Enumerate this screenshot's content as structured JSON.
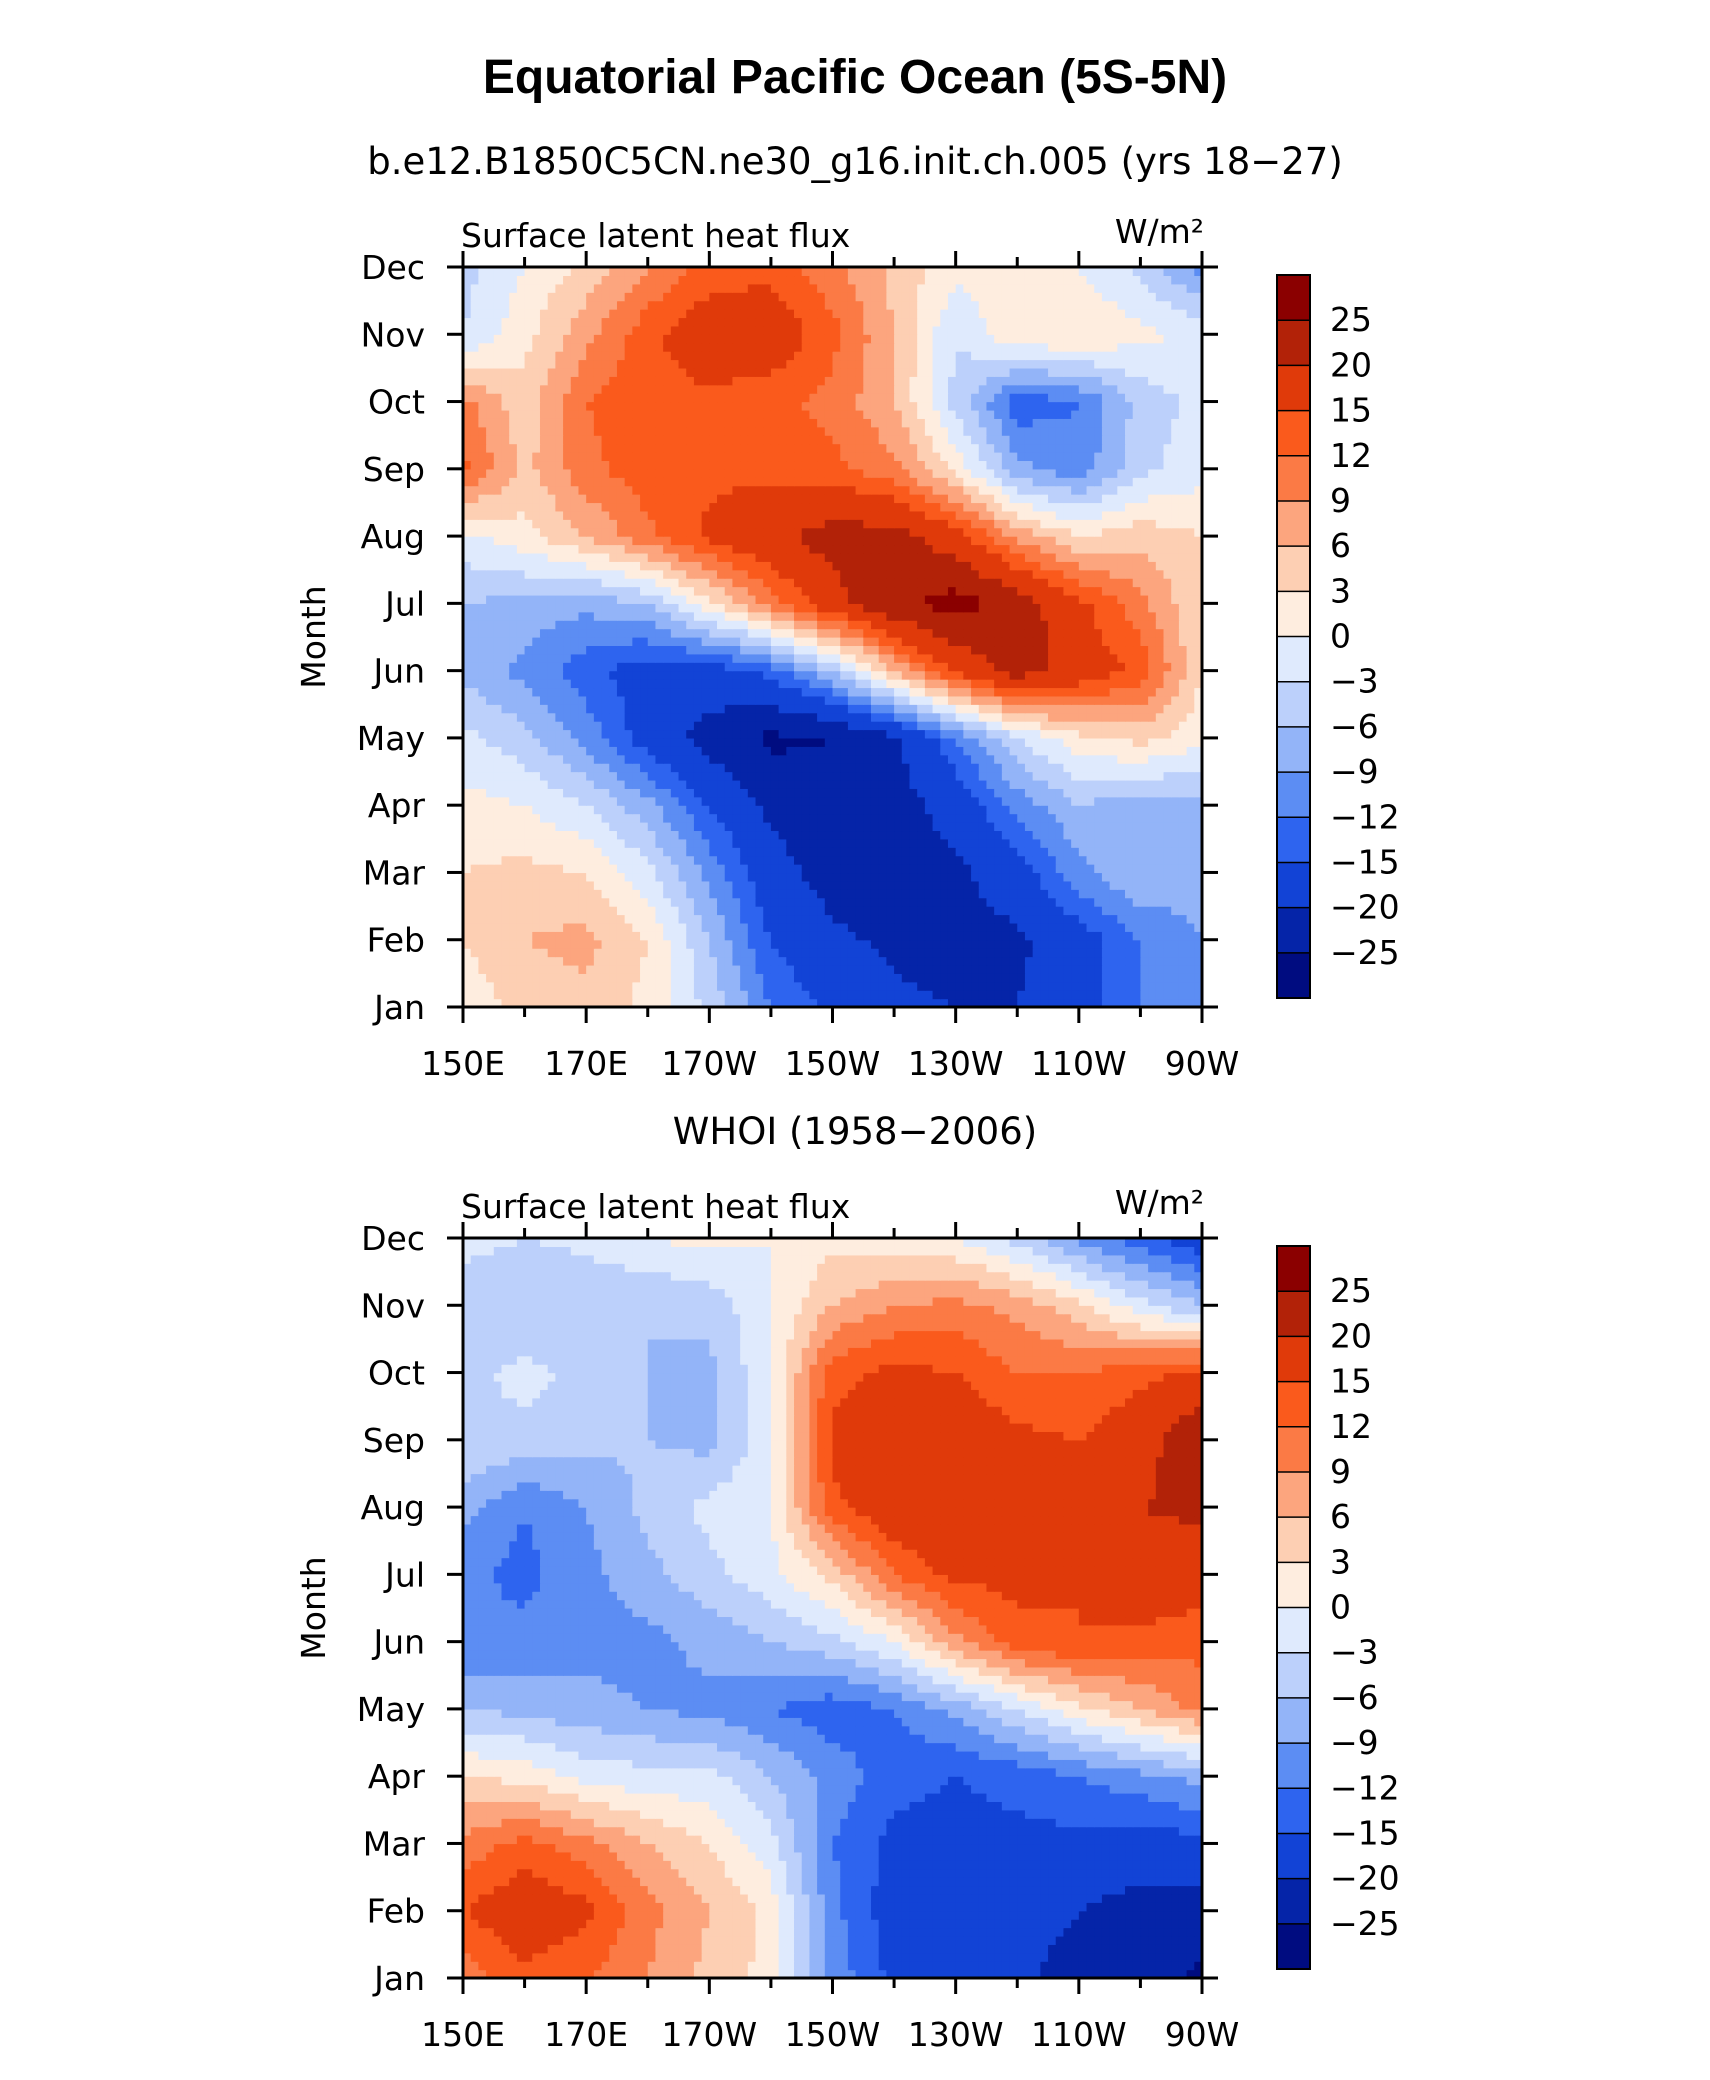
{
  "title": "Equatorial Pacific Ocean (5S-5N)",
  "colorbar_levels": [
    "25",
    "20",
    "15",
    "12",
    "9",
    "6",
    "3",
    "0",
    "−3",
    "−6",
    "−9",
    "−12",
    "−15",
    "−20",
    "−25"
  ],
  "colorbar_colors": [
    "#8b0000",
    "#b22208",
    "#e03a0a",
    "#fa5a1c",
    "#fb7a45",
    "#fca57e",
    "#fdcfb3",
    "#feeddf",
    "#dfeafd",
    "#bcd0fb",
    "#93b4f8",
    "#5c8df3",
    "#2e64ef",
    "#1243d6",
    "#0524a8",
    "#000c80"
  ],
  "chart_data": [
    {
      "type": "heatmap",
      "title": "b.e12.B1850C5CN.ne30_g16.init.ch.005 (yrs 18−27)",
      "left_label": "Surface latent heat flux",
      "units_label": "W/m²",
      "ylabel": "Month",
      "x_ticks": [
        "150E",
        "170E",
        "170W",
        "150W",
        "130W",
        "110W",
        "90W"
      ],
      "x_values": [
        150,
        170,
        190,
        210,
        230,
        250,
        270
      ],
      "xlim": [
        150,
        270
      ],
      "y_ticks": [
        "Jan",
        "Feb",
        "Mar",
        "Apr",
        "May",
        "Jun",
        "Jul",
        "Aug",
        "Sep",
        "Oct",
        "Nov",
        "Dec"
      ],
      "ylim": [
        1,
        12
      ],
      "z_grid_x": [
        150,
        160,
        170,
        180,
        190,
        200,
        210,
        220,
        230,
        240,
        250,
        260,
        270
      ],
      "z_grid_y": [
        "Jan",
        "Feb",
        "Mar",
        "Apr",
        "May",
        "Jun",
        "Jul",
        "Aug",
        "Sep",
        "Oct",
        "Nov",
        "Dec"
      ],
      "z": [
        [
          1,
          4,
          5,
          2,
          -4,
          -12,
          -16,
          -19,
          -20,
          -20,
          -17,
          -12,
          -10
        ],
        [
          3,
          6,
          7,
          3,
          -6,
          -15,
          -19,
          -21,
          -22,
          -21,
          -17,
          -12,
          -9
        ],
        [
          3,
          4,
          3,
          -2,
          -10,
          -18,
          -22,
          -23,
          -21,
          -17,
          -10,
          -6,
          -8
        ],
        [
          1,
          0,
          -3,
          -8,
          -15,
          -21,
          -24,
          -22,
          -18,
          -11,
          -6,
          -8,
          -7
        ],
        [
          -2,
          -5,
          -10,
          -17,
          -22,
          -26,
          -25,
          -21,
          -12,
          -3,
          2,
          4,
          1
        ],
        [
          -7,
          -10,
          -14,
          -17,
          -17,
          -14,
          -6,
          6,
          16,
          22,
          18,
          14,
          3
        ],
        [
          -6,
          -7,
          -8,
          -6,
          2,
          10,
          18,
          24,
          27,
          23,
          16,
          10,
          3
        ],
        [
          -1,
          2,
          6,
          11,
          16,
          19,
          22,
          22,
          17,
          8,
          3,
          5,
          3
        ],
        [
          13,
          5,
          11,
          14,
          14,
          14,
          13,
          10,
          2,
          -8,
          -11,
          -4,
          -1
        ],
        [
          10,
          4,
          12,
          14,
          14,
          13,
          11,
          6,
          -4,
          -14,
          -12,
          -5,
          -2
        ],
        [
          -3,
          2,
          8,
          14,
          18,
          18,
          13,
          6,
          -3,
          3,
          3,
          1,
          -1
        ],
        [
          -4,
          0,
          4,
          9,
          13,
          14,
          10,
          5,
          1,
          1,
          0,
          -4,
          -10
        ]
      ]
    },
    {
      "type": "heatmap",
      "title": "WHOI (1958−2006)",
      "left_label": "Surface latent heat flux",
      "units_label": "W/m²",
      "ylabel": "Month",
      "x_ticks": [
        "150E",
        "170E",
        "170W",
        "150W",
        "130W",
        "110W",
        "90W"
      ],
      "x_values": [
        150,
        170,
        190,
        210,
        230,
        250,
        270
      ],
      "xlim": [
        150,
        270
      ],
      "y_ticks": [
        "Jan",
        "Feb",
        "Mar",
        "Apr",
        "May",
        "Jun",
        "Jul",
        "Aug",
        "Sep",
        "Oct",
        "Nov",
        "Dec"
      ],
      "ylim": [
        1,
        12
      ],
      "z_grid_x": [
        150,
        160,
        170,
        180,
        190,
        200,
        210,
        220,
        230,
        240,
        250,
        260,
        270
      ],
      "z_grid_y": [
        "Jan",
        "Feb",
        "Mar",
        "Apr",
        "May",
        "Jun",
        "Jul",
        "Aug",
        "Sep",
        "Oct",
        "Nov",
        "Dec"
      ],
      "z": [
        [
          10,
          14,
          12,
          9,
          5,
          2,
          -10,
          -16,
          -18,
          -19,
          -22,
          -23,
          -26
        ],
        [
          15,
          18,
          16,
          10,
          6,
          2,
          -11,
          -17,
          -18,
          -18,
          -20,
          -22,
          -22
        ],
        [
          10,
          13,
          10,
          6,
          3,
          -2,
          -12,
          -16,
          -16,
          -16,
          -16,
          -17,
          -16
        ],
        [
          3,
          2,
          -1,
          -2,
          -2,
          -6,
          -10,
          -14,
          -15,
          -14,
          -12,
          -10,
          -8
        ],
        [
          -6,
          -7,
          -8,
          -9,
          -10,
          -12,
          -14,
          -12,
          -8,
          -3,
          2,
          6,
          10
        ],
        [
          -12,
          -11,
          -10,
          -10,
          -8,
          -6,
          -4,
          0,
          8,
          14,
          15,
          14,
          13
        ],
        [
          -11,
          -13,
          -10,
          -7,
          -4,
          -1,
          4,
          12,
          16,
          16,
          15,
          18,
          17
        ],
        [
          -8,
          -12,
          -9,
          -5,
          -2,
          0,
          14,
          18,
          20,
          18,
          17,
          20,
          21
        ],
        [
          -3,
          -4,
          -5,
          -6,
          -7,
          -1,
          16,
          17,
          18,
          16,
          15,
          18,
          24
        ],
        [
          -4,
          -2,
          -4,
          -6,
          -7,
          0,
          14,
          16,
          15,
          12,
          12,
          14,
          16
        ],
        [
          -5,
          -6,
          -6,
          -6,
          -5,
          0,
          6,
          9,
          10,
          8,
          4,
          -2,
          -6
        ],
        [
          -2,
          -3,
          -2,
          0,
          1,
          0,
          2,
          1,
          0,
          -4,
          -10,
          -14,
          -18
        ]
      ]
    }
  ]
}
